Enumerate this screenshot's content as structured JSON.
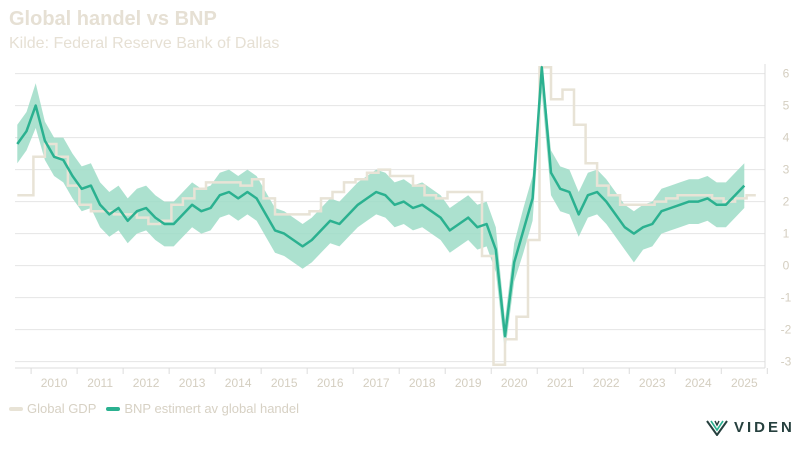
{
  "header": {
    "title": "Global handel vs BNP",
    "subtitle": "Kilde: Federal Reserve Bank of Dallas"
  },
  "legend": {
    "gdp_label": "Global GDP",
    "trade_label": "BNP estimert av global handel"
  },
  "logo": {
    "text": "VIDEN",
    "icon": "viden-logo-icon"
  },
  "colors": {
    "gdp": "#e8e3d6",
    "trade": "#2bb190",
    "band": "#9edcc7",
    "grid": "#e5e5e5",
    "axis_text": "#d4ceC0",
    "logo": "#26403e"
  },
  "chart_data": {
    "type": "line",
    "x_unit": "year",
    "xlim": [
      2009.65,
      2025.95
    ],
    "ylim": [
      -3.2,
      6.3
    ],
    "y_axis_position": "right",
    "grid": true,
    "legend_position": "bottom-left",
    "x_tick_labels": [
      "2010",
      "2011",
      "2012",
      "2013",
      "2014",
      "2015",
      "2016",
      "2017",
      "2018",
      "2019",
      "2020",
      "2021",
      "2022",
      "2023",
      "2024",
      "2025"
    ],
    "y_tick_labels": [
      "6",
      "5",
      "4",
      "3",
      "2",
      "1",
      "0",
      "-1",
      "-2",
      "-3"
    ],
    "series": [
      {
        "name": "Global GDP",
        "style": "step",
        "x": [
          2009.7,
          2009.9,
          2010.05,
          2010.3,
          2010.55,
          2010.8,
          2011.05,
          2011.3,
          2011.55,
          2011.8,
          2012.05,
          2012.3,
          2012.55,
          2012.8,
          2013.05,
          2013.3,
          2013.55,
          2013.8,
          2014.05,
          2014.3,
          2014.55,
          2014.8,
          2015.05,
          2015.3,
          2015.55,
          2015.8,
          2016.05,
          2016.3,
          2016.55,
          2016.8,
          2017.05,
          2017.3,
          2017.55,
          2017.8,
          2018.05,
          2018.3,
          2018.55,
          2018.8,
          2019.05,
          2019.3,
          2019.55,
          2019.8,
          2020.05,
          2020.3,
          2020.55,
          2020.8,
          2021.05,
          2021.3,
          2021.55,
          2021.8,
          2022.05,
          2022.3,
          2022.55,
          2022.8,
          2023.05,
          2023.3,
          2023.55,
          2023.8,
          2024.05,
          2024.3,
          2024.55,
          2024.8,
          2025.05,
          2025.3,
          2025.55
        ],
        "values": [
          2.2,
          2.2,
          3.4,
          3.8,
          3.4,
          2.5,
          1.9,
          1.7,
          1.7,
          1.6,
          1.6,
          1.5,
          1.3,
          1.4,
          1.9,
          2.1,
          2.4,
          2.6,
          2.6,
          2.6,
          2.5,
          2.7,
          2.1,
          1.6,
          1.6,
          1.6,
          1.7,
          2.1,
          2.3,
          2.6,
          2.7,
          2.9,
          3.0,
          2.8,
          2.8,
          2.5,
          2.2,
          2.1,
          2.3,
          2.3,
          2.3,
          0.3,
          -3.1,
          -2.3,
          -1.6,
          0.8,
          6.2,
          5.2,
          5.5,
          4.4,
          3.2,
          2.5,
          2.2,
          1.9,
          1.9,
          1.9,
          2.0,
          2.1,
          2.2,
          2.2,
          2.2,
          2.1,
          2.0,
          2.1,
          2.2
        ]
      },
      {
        "name": "BNP estimert av global handel",
        "style": "line_with_band",
        "x": [
          2009.7,
          2009.9,
          2010.1,
          2010.3,
          2010.5,
          2010.7,
          2010.9,
          2011.1,
          2011.3,
          2011.5,
          2011.7,
          2011.9,
          2012.1,
          2012.3,
          2012.5,
          2012.7,
          2012.9,
          2013.1,
          2013.3,
          2013.5,
          2013.7,
          2013.9,
          2014.1,
          2014.3,
          2014.5,
          2014.7,
          2014.9,
          2015.1,
          2015.3,
          2015.5,
          2015.7,
          2015.9,
          2016.1,
          2016.3,
          2016.5,
          2016.7,
          2016.9,
          2017.1,
          2017.3,
          2017.5,
          2017.7,
          2017.9,
          2018.1,
          2018.3,
          2018.5,
          2018.7,
          2018.9,
          2019.1,
          2019.3,
          2019.5,
          2019.7,
          2019.9,
          2020.1,
          2020.3,
          2020.5,
          2020.7,
          2020.9,
          2021.1,
          2021.3,
          2021.5,
          2021.7,
          2021.9,
          2022.1,
          2022.3,
          2022.5,
          2022.7,
          2022.9,
          2023.1,
          2023.3,
          2023.5,
          2023.7,
          2023.9,
          2024.1,
          2024.3,
          2024.5,
          2024.7,
          2024.9,
          2025.1,
          2025.3,
          2025.5
        ],
        "values": [
          3.8,
          4.2,
          5.0,
          3.9,
          3.4,
          3.3,
          2.8,
          2.4,
          2.5,
          1.9,
          1.6,
          1.8,
          1.4,
          1.7,
          1.8,
          1.5,
          1.3,
          1.3,
          1.6,
          1.9,
          1.7,
          1.8,
          2.2,
          2.3,
          2.1,
          2.3,
          2.1,
          1.6,
          1.1,
          1.0,
          0.8,
          0.6,
          0.8,
          1.1,
          1.4,
          1.3,
          1.6,
          1.9,
          2.1,
          2.3,
          2.2,
          1.9,
          2.0,
          1.8,
          1.9,
          1.7,
          1.5,
          1.1,
          1.3,
          1.5,
          1.2,
          1.3,
          0.5,
          -2.2,
          0.1,
          1.1,
          2.1,
          6.2,
          2.9,
          2.4,
          2.3,
          1.6,
          2.2,
          2.3,
          2.0,
          1.6,
          1.2,
          1.0,
          1.2,
          1.3,
          1.7,
          1.8,
          1.9,
          2.0,
          2.0,
          2.1,
          1.9,
          1.9,
          2.2,
          2.5
        ],
        "lower": [
          3.2,
          3.6,
          4.3,
          3.3,
          2.8,
          2.6,
          2.1,
          1.7,
          1.8,
          1.2,
          0.9,
          1.1,
          0.7,
          1.0,
          1.1,
          0.8,
          0.6,
          0.6,
          0.9,
          1.2,
          1.0,
          1.1,
          1.5,
          1.6,
          1.4,
          1.6,
          1.4,
          0.9,
          0.4,
          0.3,
          0.1,
          -0.1,
          0.1,
          0.4,
          0.7,
          0.6,
          0.9,
          1.2,
          1.4,
          1.6,
          1.5,
          1.2,
          1.3,
          1.1,
          1.2,
          1.0,
          0.8,
          0.4,
          0.6,
          0.8,
          0.5,
          0.6,
          -0.2,
          -2.7,
          -0.5,
          0.4,
          1.4,
          5.4,
          2.2,
          1.7,
          1.6,
          0.9,
          1.5,
          1.6,
          1.3,
          0.9,
          0.5,
          0.1,
          0.5,
          0.6,
          1.0,
          1.1,
          1.2,
          1.3,
          1.3,
          1.4,
          1.2,
          1.2,
          1.5,
          1.8
        ],
        "upper": [
          4.4,
          4.8,
          5.7,
          4.5,
          4.0,
          4.0,
          3.5,
          3.1,
          3.2,
          2.6,
          2.3,
          2.5,
          2.1,
          2.4,
          2.5,
          2.2,
          2.0,
          2.0,
          2.3,
          2.6,
          2.4,
          2.5,
          2.9,
          3.0,
          2.8,
          3.0,
          2.8,
          2.3,
          1.8,
          1.7,
          1.5,
          1.3,
          1.5,
          1.8,
          2.1,
          2.0,
          2.3,
          2.6,
          2.8,
          3.0,
          2.9,
          2.6,
          2.7,
          2.5,
          2.6,
          2.4,
          2.2,
          1.8,
          2.0,
          2.2,
          1.9,
          2.0,
          1.2,
          -1.7,
          0.7,
          1.8,
          2.8,
          6.3,
          3.6,
          3.1,
          3.0,
          2.3,
          2.9,
          3.0,
          2.7,
          2.3,
          1.9,
          1.7,
          1.9,
          2.0,
          2.4,
          2.5,
          2.6,
          2.7,
          2.7,
          2.8,
          2.6,
          2.6,
          2.9,
          3.2
        ]
      }
    ]
  }
}
